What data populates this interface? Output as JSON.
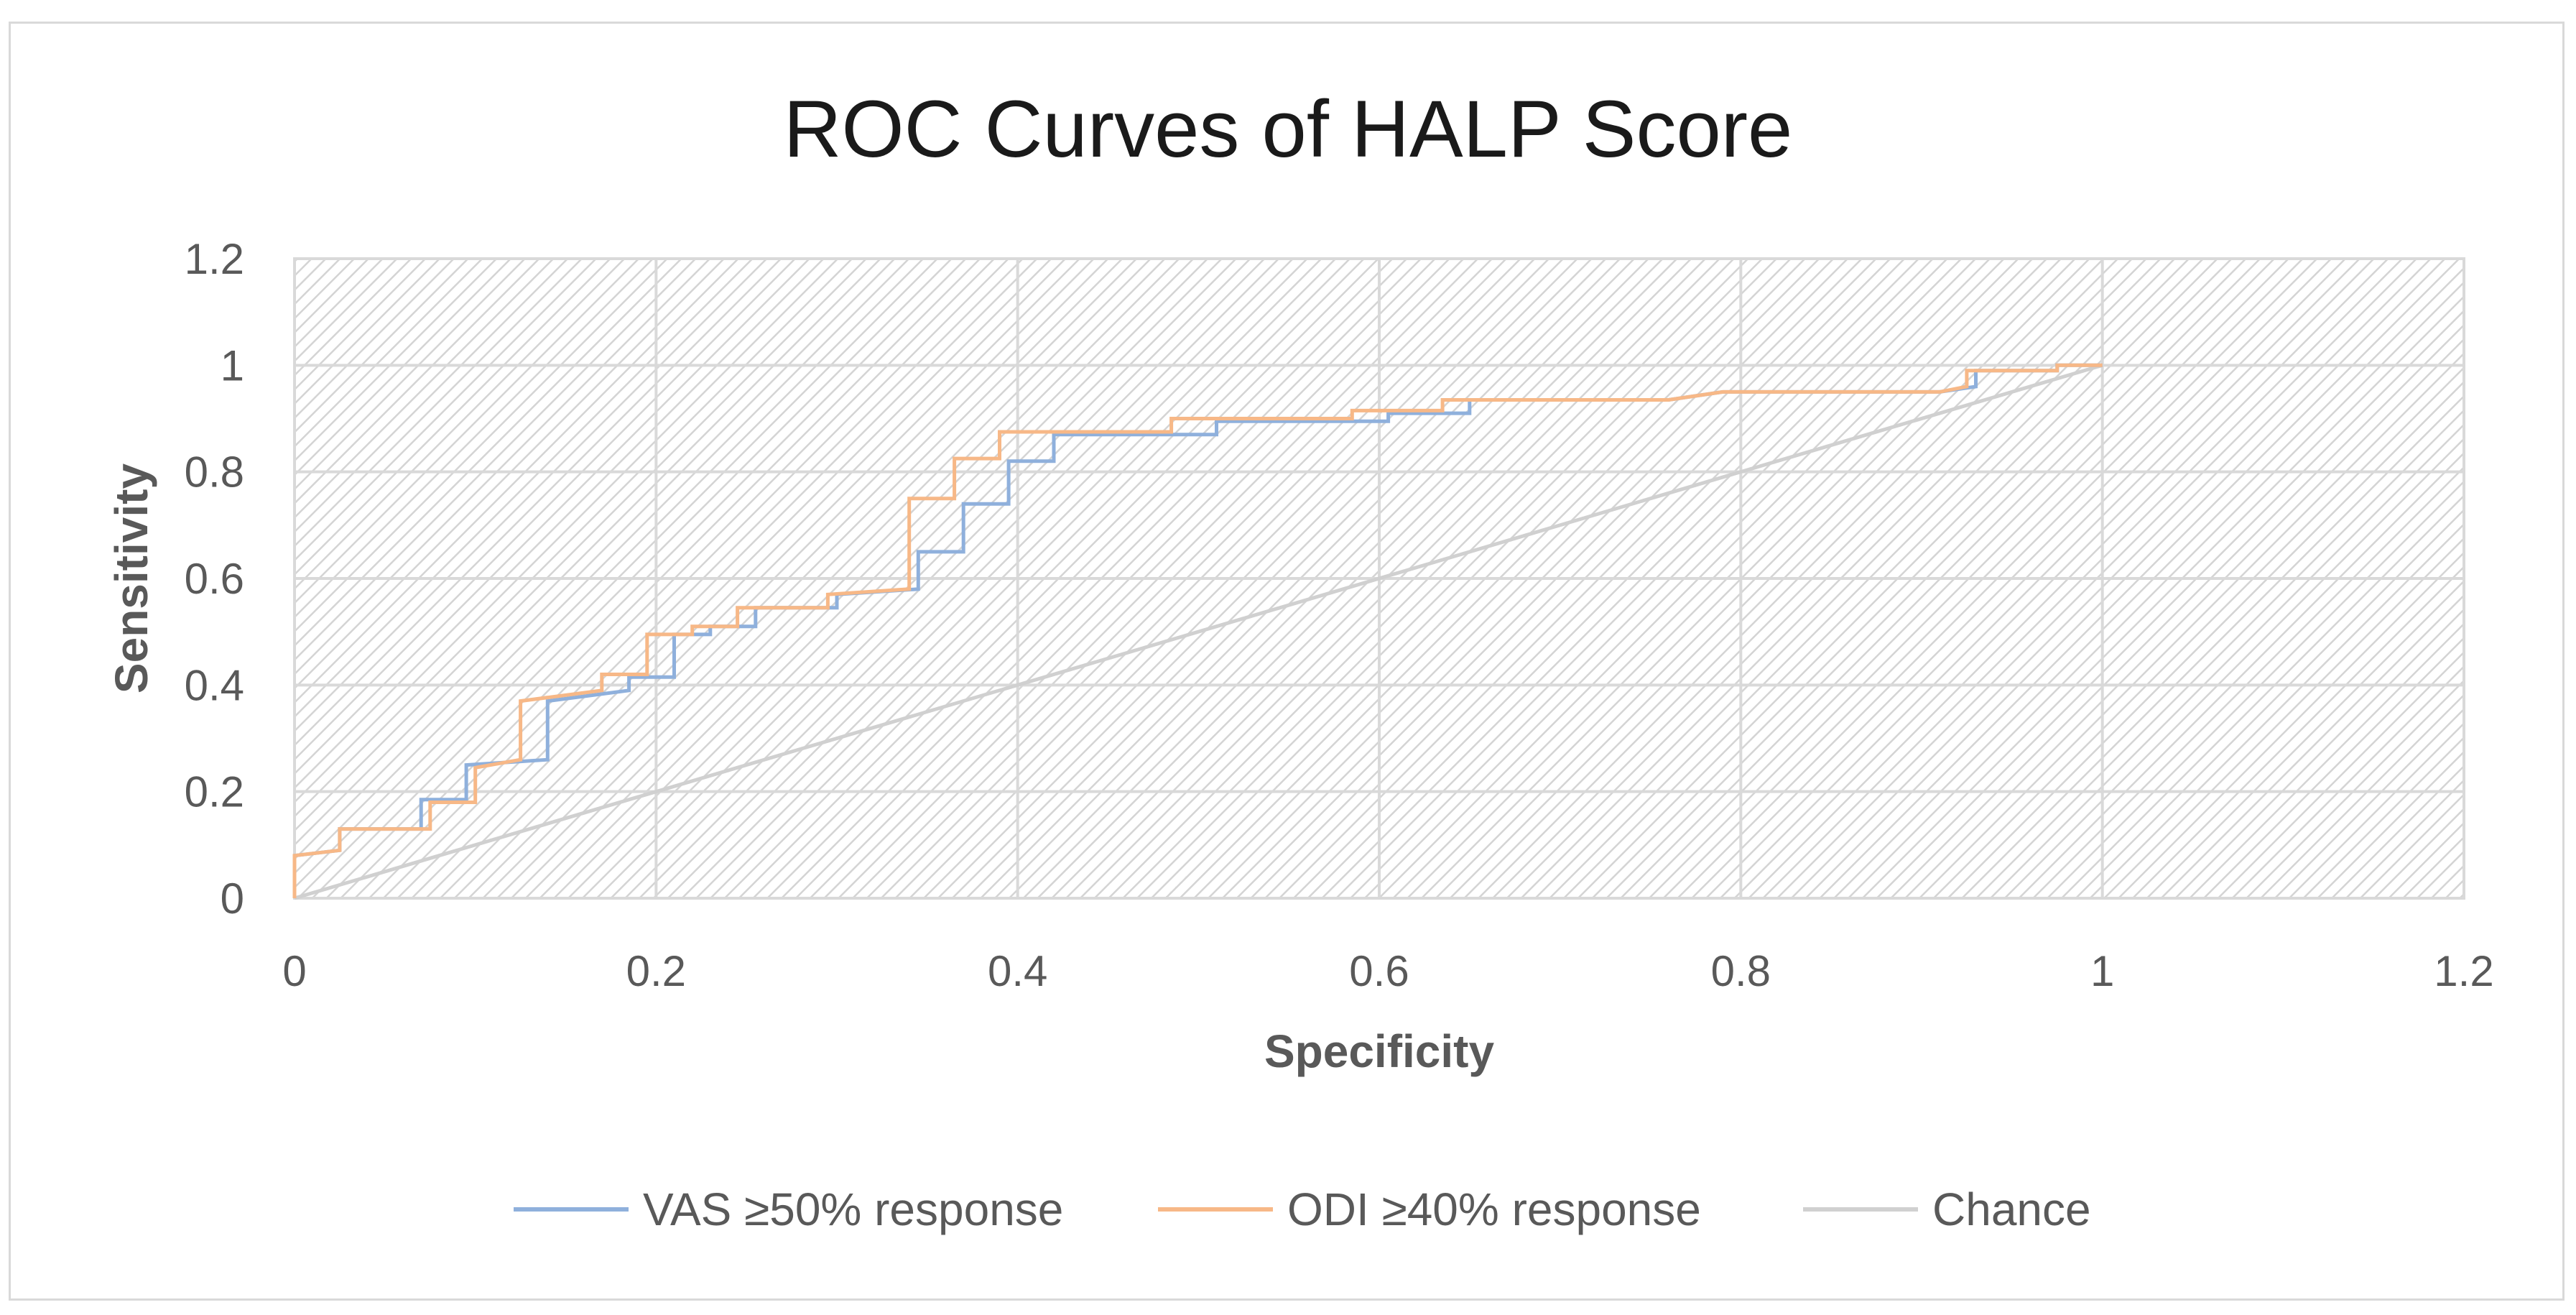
{
  "chart_data": {
    "type": "line",
    "title": "ROC Curves of HALP Score",
    "xlabel": "Specificity",
    "ylabel": "Sensitivity",
    "xlim": [
      0,
      1.2
    ],
    "ylim": [
      0,
      1.2
    ],
    "x_ticks": [
      "0",
      "0.2",
      "0.4",
      "0.6",
      "0.8",
      "1",
      "1.2"
    ],
    "y_ticks": [
      "0",
      "0.2",
      "0.4",
      "0.6",
      "0.8",
      "1",
      "1.2"
    ],
    "grid": true,
    "legend_position": "bottom",
    "series": [
      {
        "name": "VAS ≥50% response",
        "color": "#8fb0dc",
        "x": [
          0,
          0,
          0.025,
          0.025,
          0.07,
          0.07,
          0.095,
          0.095,
          0.14,
          0.14,
          0.185,
          0.185,
          0.21,
          0.21,
          0.23,
          0.23,
          0.255,
          0.255,
          0.3,
          0.3,
          0.345,
          0.345,
          0.37,
          0.37,
          0.395,
          0.395,
          0.42,
          0.42,
          0.51,
          0.51,
          0.605,
          0.605,
          0.65,
          0.65,
          0.76,
          0.79,
          0.91,
          0.93,
          0.93,
          0.975,
          0.975,
          1
        ],
        "y": [
          0,
          0.08,
          0.09,
          0.13,
          0.13,
          0.185,
          0.185,
          0.25,
          0.26,
          0.37,
          0.39,
          0.415,
          0.415,
          0.495,
          0.495,
          0.51,
          0.51,
          0.545,
          0.545,
          0.57,
          0.58,
          0.65,
          0.65,
          0.74,
          0.74,
          0.82,
          0.82,
          0.87,
          0.87,
          0.895,
          0.895,
          0.91,
          0.91,
          0.935,
          0.935,
          0.95,
          0.95,
          0.96,
          0.99,
          0.99,
          1.0,
          1.0
        ]
      },
      {
        "name": "ODI ≥40% response",
        "color": "#f7b887",
        "x": [
          0,
          0,
          0.025,
          0.025,
          0.075,
          0.075,
          0.1,
          0.1,
          0.125,
          0.125,
          0.17,
          0.17,
          0.195,
          0.195,
          0.22,
          0.22,
          0.245,
          0.245,
          0.295,
          0.295,
          0.34,
          0.34,
          0.365,
          0.365,
          0.39,
          0.39,
          0.415,
          0.485,
          0.485,
          0.585,
          0.585,
          0.635,
          0.635,
          0.76,
          0.79,
          0.91,
          0.925,
          0.925,
          0.975,
          0.975,
          1
        ],
        "y": [
          0,
          0.08,
          0.09,
          0.13,
          0.13,
          0.18,
          0.18,
          0.245,
          0.26,
          0.37,
          0.39,
          0.42,
          0.42,
          0.495,
          0.495,
          0.51,
          0.51,
          0.545,
          0.545,
          0.57,
          0.58,
          0.75,
          0.75,
          0.825,
          0.825,
          0.875,
          0.875,
          0.875,
          0.9,
          0.9,
          0.915,
          0.915,
          0.935,
          0.935,
          0.95,
          0.95,
          0.96,
          0.99,
          0.99,
          1.0,
          1.0
        ]
      },
      {
        "name": "Chance",
        "color": "#d0d0d0",
        "x": [
          0,
          1
        ],
        "y": [
          0,
          1
        ]
      }
    ]
  }
}
